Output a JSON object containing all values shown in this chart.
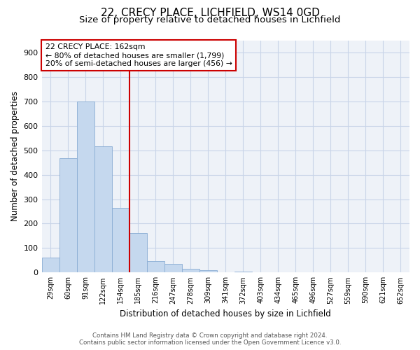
{
  "title1": "22, CRECY PLACE, LICHFIELD, WS14 0GD",
  "title2": "Size of property relative to detached houses in Lichfield",
  "xlabel": "Distribution of detached houses by size in Lichfield",
  "ylabel": "Number of detached properties",
  "bar_labels": [
    "29sqm",
    "60sqm",
    "91sqm",
    "122sqm",
    "154sqm",
    "185sqm",
    "216sqm",
    "247sqm",
    "278sqm",
    "309sqm",
    "341sqm",
    "372sqm",
    "403sqm",
    "434sqm",
    "465sqm",
    "496sqm",
    "527sqm",
    "559sqm",
    "590sqm",
    "621sqm",
    "652sqm"
  ],
  "bar_values": [
    60,
    467,
    700,
    515,
    265,
    160,
    48,
    35,
    14,
    10,
    0,
    5,
    0,
    0,
    0,
    0,
    0,
    0,
    0,
    0,
    0
  ],
  "bar_color": "#c5d8ee",
  "bar_edge_color": "#8aadd4",
  "vline_x_idx": 4.5,
  "vline_color": "#cc0000",
  "annotation_title": "22 CRECY PLACE: 162sqm",
  "annotation_line1": "← 80% of detached houses are smaller (1,799)",
  "annotation_line2": "20% of semi-detached houses are larger (456) →",
  "annotation_box_color": "#ffffff",
  "annotation_box_edge": "#cc0000",
  "ylim": [
    0,
    950
  ],
  "yticks": [
    0,
    100,
    200,
    300,
    400,
    500,
    600,
    700,
    800,
    900
  ],
  "footer1": "Contains HM Land Registry data © Crown copyright and database right 2024.",
  "footer2": "Contains public sector information licensed under the Open Government Licence v3.0.",
  "bg_color": "#ffffff",
  "plot_bg_color": "#eef2f8",
  "grid_color": "#c8d4e8",
  "title1_fontsize": 11,
  "title2_fontsize": 9.5
}
